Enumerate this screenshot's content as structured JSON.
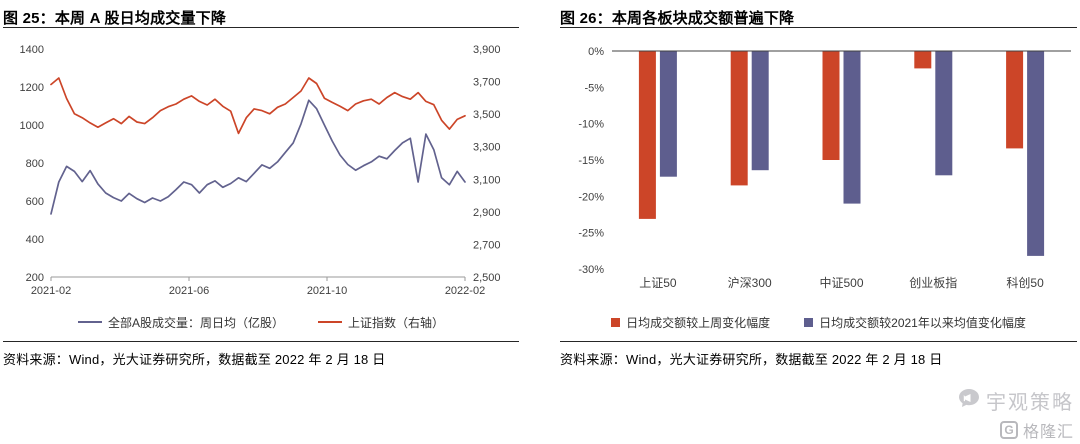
{
  "panels": {
    "left": {
      "title": "图 25：本周 A 股日均成交量下降",
      "source": "资料来源：Wind，光大证券研究所，数据截至 2022 年 2 月 18 日",
      "legend": [
        {
          "label": "全部A股成交量：周日均（亿股）",
          "color": "#62628E"
        },
        {
          "label": "上证指数（右轴）",
          "color": "#CC4528"
        }
      ]
    },
    "right": {
      "title": "图 26：本周各板块成交额普遍下降",
      "source": "资料来源：Wind，光大证券研究所，数据截至 2022 年 2 月 18 日",
      "legend": [
        {
          "label": "日均成交额较上周变化幅度",
          "color": "#CC4528"
        },
        {
          "label": "日均成交额较2021年以来均值变化幅度",
          "color": "#5E5E8E"
        }
      ]
    }
  },
  "chart_data": [
    {
      "type": "line",
      "title": "本周 A 股日均成交量下降",
      "x_ticks": [
        "2021-02",
        "2021-06",
        "2021-10",
        "2022-02"
      ],
      "y_axis_left": {
        "label": "全部A股成交量：周日均（亿股）",
        "min": 200,
        "max": 1400,
        "ticks": [
          200,
          400,
          600,
          800,
          1000,
          1200,
          1400
        ]
      },
      "y_axis_right": {
        "label": "上证指数",
        "min": 2500,
        "max": 3900,
        "tick_labels": [
          "2,500",
          "2,700",
          "2,900",
          "3,100",
          "3,300",
          "3,500",
          "3,700",
          "3,900"
        ]
      },
      "grid": false,
      "legend_position": "bottom",
      "series": [
        {
          "name": "全部A股成交量：周日均（亿股）",
          "axis": "left",
          "color": "#62628E",
          "values": [
            532,
            700,
            782,
            756,
            702,
            760,
            690,
            642,
            618,
            600,
            640,
            612,
            592,
            616,
            600,
            622,
            660,
            700,
            686,
            642,
            686,
            706,
            672,
            692,
            722,
            702,
            746,
            790,
            772,
            806,
            856,
            906,
            1006,
            1130,
            1086,
            1000,
            916,
            842,
            792,
            762,
            786,
            806,
            836,
            822,
            866,
            906,
            930,
            700,
            952,
            870,
            722,
            686,
            756,
            700
          ]
        },
        {
          "name": "上证指数（右轴）",
          "axis": "right",
          "color": "#CC4528",
          "values": [
            3682,
            3722,
            3596,
            3502,
            3478,
            3446,
            3420,
            3446,
            3472,
            3442,
            3486,
            3452,
            3442,
            3478,
            3522,
            3546,
            3562,
            3592,
            3612,
            3578,
            3556,
            3592,
            3548,
            3518,
            3382,
            3478,
            3532,
            3522,
            3502,
            3542,
            3562,
            3602,
            3642,
            3722,
            3688,
            3598,
            3572,
            3548,
            3522,
            3562,
            3582,
            3592,
            3562,
            3602,
            3632,
            3608,
            3592,
            3632,
            3578,
            3558,
            3462,
            3408,
            3468,
            3490
          ]
        }
      ]
    },
    {
      "type": "bar",
      "title": "本周各板块成交额普遍下降",
      "categories": [
        "上证50",
        "沪深300",
        "中证500",
        "创业板指",
        "科创50"
      ],
      "ylim": [
        -30,
        0
      ],
      "y_tick_values": [
        0,
        -5,
        -10,
        -15,
        -20,
        -25,
        -30
      ],
      "y_tick_labels": [
        "0%",
        "-5%",
        "-10%",
        "-15%",
        "-20%",
        "-25%",
        "-30%"
      ],
      "grid": false,
      "legend_position": "bottom",
      "series": [
        {
          "name": "日均成交额较上周变化幅度",
          "color": "#CC4528",
          "values": [
            -23.1,
            -18.5,
            -15.0,
            -2.4,
            -13.4
          ]
        },
        {
          "name": "日均成交额较2021年以来均值变化幅度",
          "color": "#5E5E8E",
          "values": [
            -17.3,
            -16.4,
            -21.0,
            -17.1,
            -28.2
          ]
        }
      ]
    }
  ],
  "watermark": {
    "brand": "宇观策略",
    "logo": "格隆汇",
    "logo_letter": "G"
  }
}
